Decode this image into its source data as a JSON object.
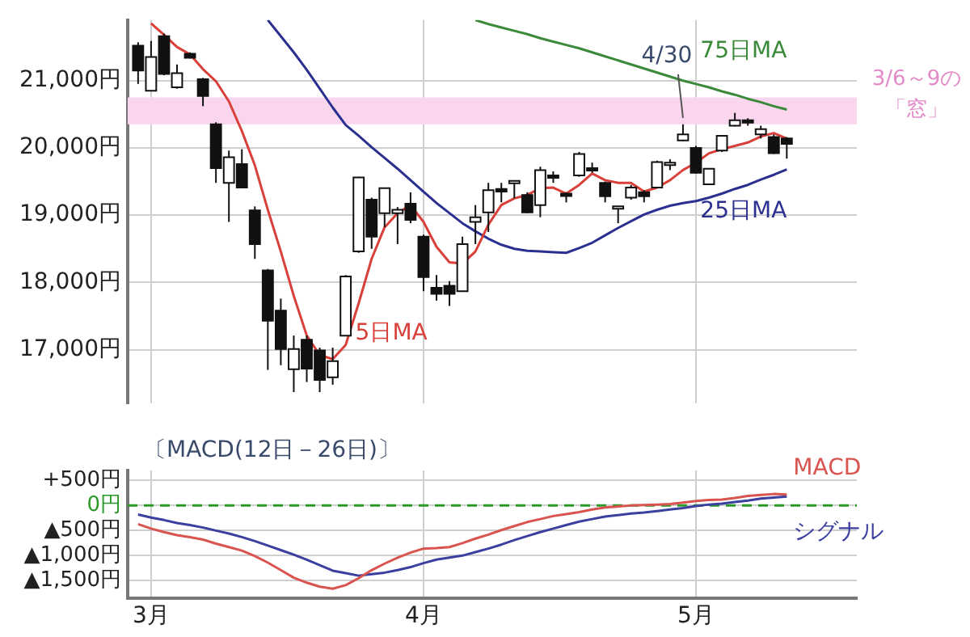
{
  "chart_data": [
    {
      "type": "candlestick",
      "categories": [
        null,
        null,
        null,
        null,
        null,
        null,
        null,
        null,
        null,
        null,
        null,
        null,
        null,
        null,
        null,
        null,
        null,
        null,
        null,
        null,
        null,
        null,
        null,
        null,
        null,
        null,
        null,
        null,
        null,
        null,
        null,
        null,
        null,
        null,
        null,
        null,
        null,
        null,
        null,
        null,
        null,
        null,
        null,
        null,
        null,
        null,
        null,
        null,
        null,
        null,
        null
      ],
      "ohlc": [
        [
          21520,
          21570,
          20950,
          21150
        ],
        [
          20850,
          21590,
          20840,
          21350
        ],
        [
          21660,
          21700,
          21080,
          21100
        ],
        [
          20900,
          21240,
          20880,
          21110
        ],
        [
          21400,
          21420,
          21330,
          21340
        ],
        [
          21020,
          21040,
          20620,
          20770
        ],
        [
          20350,
          20380,
          19480,
          19700
        ],
        [
          19480,
          19960,
          18900,
          19860
        ],
        [
          19760,
          19980,
          19400,
          19410
        ],
        [
          19070,
          19130,
          18350,
          18570
        ],
        [
          18180,
          18200,
          16700,
          17430
        ],
        [
          17580,
          17760,
          16770,
          17010
        ],
        [
          16710,
          17210,
          16370,
          17010
        ],
        [
          17150,
          17210,
          16520,
          16720
        ],
        [
          16990,
          17030,
          16370,
          16550
        ],
        [
          16590,
          17030,
          16480,
          16830
        ],
        [
          17210,
          18110,
          17200,
          18090
        ],
        [
          18460,
          19570,
          18440,
          19560
        ],
        [
          19230,
          19260,
          18500,
          18680
        ],
        [
          19030,
          19410,
          18820,
          19400
        ],
        [
          19030,
          19120,
          18570,
          19080
        ],
        [
          19170,
          19340,
          18880,
          18930
        ],
        [
          18680,
          18710,
          17870,
          18080
        ],
        [
          17920,
          18110,
          17730,
          17830
        ],
        [
          17950,
          18020,
          17650,
          17830
        ],
        [
          17870,
          18680,
          17860,
          18570
        ],
        [
          18900,
          19150,
          18570,
          18970
        ],
        [
          19040,
          19480,
          18750,
          19370
        ],
        [
          19390,
          19480,
          19190,
          19350
        ],
        [
          19490,
          19510,
          19250,
          19510
        ],
        [
          19300,
          19340,
          19030,
          19040
        ],
        [
          19150,
          19720,
          18970,
          19670
        ],
        [
          19590,
          19650,
          19480,
          19560
        ],
        [
          19320,
          19340,
          19190,
          19300
        ],
        [
          19590,
          19940,
          19570,
          19910
        ],
        [
          19700,
          19780,
          19630,
          19670
        ],
        [
          19480,
          19500,
          19190,
          19280
        ],
        [
          19110,
          19130,
          18880,
          19130
        ],
        [
          19260,
          19450,
          19230,
          19410
        ],
        [
          19340,
          19370,
          19190,
          19280
        ],
        [
          19410,
          19810,
          19400,
          19790
        ],
        [
          19760,
          19830,
          19670,
          19780
        ],
        [
          20110,
          20350,
          20100,
          20200
        ],
        [
          20000,
          20030,
          19620,
          19630
        ],
        [
          19460,
          19700,
          19450,
          19690
        ],
        [
          19960,
          20190,
          19940,
          20180
        ],
        [
          20330,
          20520,
          20320,
          20410
        ],
        [
          20410,
          20440,
          20330,
          20380
        ],
        [
          20200,
          20330,
          20140,
          20280
        ],
        [
          20160,
          20200,
          19910,
          19920
        ],
        [
          20140,
          20160,
          19840,
          20060
        ]
      ],
      "series": [
        {
          "name": "5日MA",
          "type": "line",
          "color": "#d9403a",
          "values": [
            null,
            21850,
            21680,
            21500,
            21390,
            21170,
            20990,
            20690,
            20250,
            19740,
            19080,
            18460,
            17800,
            17210,
            16920,
            16860,
            17070,
            17690,
            18350,
            18820,
            19030,
            19150,
            18900,
            18530,
            18300,
            18280,
            18460,
            18860,
            19150,
            19250,
            19300,
            19400,
            19410,
            19320,
            19450,
            19620,
            19520,
            19480,
            19480,
            19350,
            19410,
            19520,
            19670,
            19780,
            19920,
            19980,
            20030,
            20080,
            20170,
            20220,
            20140
          ]
        },
        {
          "name": "25日MA",
          "type": "line",
          "color": "#2b2f8f",
          "values": [
            null,
            null,
            null,
            null,
            null,
            null,
            null,
            null,
            null,
            null,
            21900,
            21660,
            21420,
            21160,
            20880,
            20600,
            20340,
            20180,
            20010,
            19850,
            19690,
            19520,
            19350,
            19180,
            19030,
            18880,
            18760,
            18650,
            18560,
            18500,
            18470,
            18460,
            18450,
            18440,
            18510,
            18590,
            18700,
            18810,
            18910,
            19010,
            19080,
            19140,
            19180,
            19210,
            19260,
            19320,
            19390,
            19450,
            19530,
            19600,
            19680
          ]
        },
        {
          "name": "75日MA",
          "type": "line",
          "color": "#3a8a3a",
          "values": [
            null,
            null,
            null,
            null,
            null,
            null,
            null,
            null,
            null,
            null,
            null,
            null,
            null,
            null,
            null,
            null,
            null,
            null,
            null,
            null,
            null,
            null,
            null,
            null,
            null,
            null,
            21900,
            21840,
            21790,
            21740,
            21690,
            21630,
            21580,
            21530,
            21480,
            21420,
            21360,
            21300,
            21240,
            21180,
            21120,
            21060,
            21000,
            20950,
            20900,
            20840,
            20790,
            20730,
            20680,
            20620,
            20570
          ]
        }
      ],
      "ylim": [
        16200,
        21900
      ],
      "yticks": [
        {
          "value": 17000,
          "label": "17,000円"
        },
        {
          "value": 18000,
          "label": "18,000円"
        },
        {
          "value": 19000,
          "label": "19,000円"
        },
        {
          "value": 20000,
          "label": "20,000円"
        },
        {
          "value": 21000,
          "label": "21,000円"
        }
      ],
      "tick_labels": "y",
      "grid": true,
      "bands": [
        {
          "axis": "y",
          "from": 20350,
          "to": 20750,
          "label": "3/6～9の「窓」",
          "color": "#fad6ee"
        }
      ],
      "annotations": [
        {
          "text": "4/30",
          "y": 20350
        }
      ]
    },
    {
      "type": "line",
      "title": "〔MACD(12日－26日)〕",
      "categories": [
        null,
        "3月",
        null,
        null,
        null,
        null,
        null,
        null,
        null,
        null,
        null,
        null,
        null,
        null,
        null,
        null,
        null,
        null,
        null,
        null,
        null,
        null,
        "4月",
        null,
        null,
        null,
        null,
        null,
        null,
        null,
        null,
        null,
        null,
        null,
        null,
        null,
        null,
        null,
        null,
        null,
        null,
        null,
        null,
        "5月",
        null,
        null,
        null,
        null,
        null,
        null,
        null
      ],
      "series": [
        {
          "name": "MACD",
          "color": "#d9534f",
          "values": [
            -370,
            -460,
            -530,
            -590,
            -630,
            -680,
            -760,
            -830,
            -900,
            -1010,
            -1140,
            -1290,
            -1440,
            -1540,
            -1620,
            -1660,
            -1590,
            -1450,
            -1290,
            -1160,
            -1040,
            -940,
            -860,
            -850,
            -830,
            -750,
            -660,
            -580,
            -490,
            -410,
            -330,
            -270,
            -210,
            -170,
            -130,
            -80,
            -40,
            -20,
            0,
            10,
            20,
            30,
            60,
            90,
            110,
            120,
            150,
            190,
            210,
            230,
            220
          ]
        },
        {
          "name": "シグナル",
          "color": "#3b3fa0",
          "values": [
            -180,
            -240,
            -290,
            -350,
            -390,
            -440,
            -500,
            -560,
            -630,
            -710,
            -800,
            -890,
            -980,
            -1080,
            -1190,
            -1300,
            -1350,
            -1400,
            -1370,
            -1340,
            -1290,
            -1230,
            -1150,
            -1080,
            -1040,
            -1000,
            -930,
            -860,
            -780,
            -690,
            -610,
            -530,
            -460,
            -390,
            -320,
            -270,
            -220,
            -190,
            -160,
            -140,
            -110,
            -80,
            -50,
            -10,
            20,
            40,
            70,
            100,
            140,
            160,
            180
          ]
        }
      ],
      "ylim": [
        -1850,
        700
      ],
      "yticks": [
        {
          "value": 500,
          "label": "+500円"
        },
        {
          "value": 0,
          "label": "0円"
        },
        {
          "value": -500,
          "label": "▲500円"
        },
        {
          "value": -1000,
          "label": "▲1,000円"
        },
        {
          "value": -1500,
          "label": "▲1,500円"
        }
      ],
      "grid": true,
      "ref_lines": [
        {
          "axis": "y",
          "value": 0,
          "color": "#2a9a2a",
          "line_style": "dashed"
        }
      ]
    }
  ]
}
